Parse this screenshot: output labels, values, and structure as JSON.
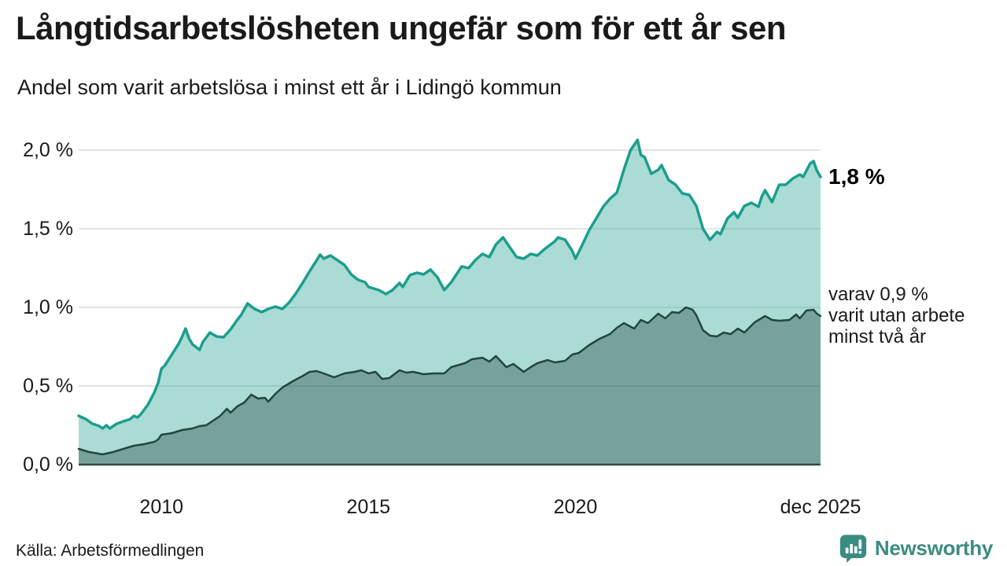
{
  "header": {
    "title": "Långtidsarbetslösheten ungefär som för ett år sen",
    "subtitle": "Andel som varit arbetslösa i minst ett år i Lidingö kommun"
  },
  "annotations": {
    "latest_label": "1,8 %",
    "varav_lines": [
      "varav 0,9 %",
      "varit utan arbete",
      "minst två år"
    ]
  },
  "footer": {
    "source": "Källa: Arbetsförmedlingen",
    "brand": "Newsworthy"
  },
  "colors": {
    "line_1yr": "#1b9e8e",
    "fill_1yr": "rgba(27,158,142,0.37)",
    "line_2yr": "#234540",
    "fill_2yr": "rgba(35,69,64,0.38)",
    "gridline": "#dcdcdc",
    "axis": "#2e4a45",
    "brand_teal": "#3a8c82"
  },
  "chart_data": {
    "type": "area",
    "title": "Långtidsarbetslösheten ungefär som för ett år sen",
    "subtitle": "Andel som varit arbetslösa i minst ett år i Lidingö kommun",
    "source": "Källa: Arbetsförmedlingen",
    "xlabel": "",
    "ylabel": "",
    "unit": "%",
    "grid": true,
    "legend_position": "right-annotations",
    "x_range": [
      2008.0,
      2025.92
    ],
    "y_range": [
      0,
      2.0
    ],
    "x_axis": {
      "ticks": [
        {
          "value": 2010,
          "label": "2010"
        },
        {
          "value": 2015,
          "label": "2015"
        },
        {
          "value": 2020,
          "label": "2020"
        },
        {
          "value": 2025.92,
          "label": "dec 2025"
        }
      ]
    },
    "y_axis": {
      "ticks": [
        {
          "value": 0.0,
          "label": "0,0 %"
        },
        {
          "value": 0.5,
          "label": "0,5 %"
        },
        {
          "value": 1.0,
          "label": "1,0 %"
        },
        {
          "value": 1.5,
          "label": "1,5 %"
        },
        {
          "value": 2.0,
          "label": "2,0 %"
        }
      ]
    },
    "series": [
      {
        "name": "Andel som varit arbetslösa i minst ett år",
        "end_label": "1,8 %",
        "end_value": 1.8,
        "color": "#1b9e8e",
        "fill": "rgba(27,158,142,0.37)",
        "points": [
          [
            2008.0,
            0.31
          ],
          [
            2008.17,
            0.29
          ],
          [
            2008.33,
            0.26
          ],
          [
            2008.5,
            0.245
          ],
          [
            2008.58,
            0.23
          ],
          [
            2008.67,
            0.25
          ],
          [
            2008.75,
            0.23
          ],
          [
            2008.92,
            0.26
          ],
          [
            2009.08,
            0.275
          ],
          [
            2009.25,
            0.29
          ],
          [
            2009.33,
            0.31
          ],
          [
            2009.42,
            0.3
          ],
          [
            2009.5,
            0.32
          ],
          [
            2009.67,
            0.38
          ],
          [
            2009.83,
            0.46
          ],
          [
            2009.92,
            0.52
          ],
          [
            2010.0,
            0.61
          ],
          [
            2010.08,
            0.63
          ],
          [
            2010.25,
            0.7
          ],
          [
            2010.42,
            0.77
          ],
          [
            2010.5,
            0.815
          ],
          [
            2010.58,
            0.865
          ],
          [
            2010.67,
            0.8
          ],
          [
            2010.75,
            0.765
          ],
          [
            2010.92,
            0.73
          ],
          [
            2011.0,
            0.78
          ],
          [
            2011.17,
            0.84
          ],
          [
            2011.33,
            0.815
          ],
          [
            2011.5,
            0.81
          ],
          [
            2011.67,
            0.86
          ],
          [
            2011.83,
            0.92
          ],
          [
            2011.92,
            0.95
          ],
          [
            2012.08,
            1.025
          ],
          [
            2012.25,
            0.99
          ],
          [
            2012.42,
            0.97
          ],
          [
            2012.58,
            0.99
          ],
          [
            2012.75,
            1.005
          ],
          [
            2012.92,
            0.99
          ],
          [
            2013.08,
            1.03
          ],
          [
            2013.25,
            1.09
          ],
          [
            2013.42,
            1.16
          ],
          [
            2013.58,
            1.23
          ],
          [
            2013.75,
            1.3
          ],
          [
            2013.83,
            1.335
          ],
          [
            2013.92,
            1.31
          ],
          [
            2014.08,
            1.33
          ],
          [
            2014.25,
            1.3
          ],
          [
            2014.42,
            1.27
          ],
          [
            2014.58,
            1.21
          ],
          [
            2014.75,
            1.175
          ],
          [
            2014.92,
            1.16
          ],
          [
            2015.0,
            1.13
          ],
          [
            2015.25,
            1.11
          ],
          [
            2015.42,
            1.085
          ],
          [
            2015.58,
            1.11
          ],
          [
            2015.75,
            1.155
          ],
          [
            2015.83,
            1.13
          ],
          [
            2016.0,
            1.205
          ],
          [
            2016.17,
            1.22
          ],
          [
            2016.33,
            1.21
          ],
          [
            2016.5,
            1.24
          ],
          [
            2016.67,
            1.19
          ],
          [
            2016.83,
            1.11
          ],
          [
            2017.0,
            1.16
          ],
          [
            2017.25,
            1.26
          ],
          [
            2017.42,
            1.25
          ],
          [
            2017.58,
            1.3
          ],
          [
            2017.75,
            1.34
          ],
          [
            2017.92,
            1.32
          ],
          [
            2018.08,
            1.4
          ],
          [
            2018.25,
            1.445
          ],
          [
            2018.42,
            1.38
          ],
          [
            2018.58,
            1.32
          ],
          [
            2018.75,
            1.31
          ],
          [
            2018.92,
            1.34
          ],
          [
            2019.08,
            1.33
          ],
          [
            2019.25,
            1.37
          ],
          [
            2019.5,
            1.42
          ],
          [
            2019.58,
            1.445
          ],
          [
            2019.75,
            1.43
          ],
          [
            2019.92,
            1.36
          ],
          [
            2020.0,
            1.31
          ],
          [
            2020.17,
            1.4
          ],
          [
            2020.33,
            1.49
          ],
          [
            2020.5,
            1.565
          ],
          [
            2020.67,
            1.64
          ],
          [
            2020.83,
            1.69
          ],
          [
            2021.0,
            1.73
          ],
          [
            2021.17,
            1.875
          ],
          [
            2021.33,
            2.0
          ],
          [
            2021.5,
            2.065
          ],
          [
            2021.58,
            1.97
          ],
          [
            2021.67,
            1.955
          ],
          [
            2021.83,
            1.85
          ],
          [
            2022.0,
            1.875
          ],
          [
            2022.08,
            1.905
          ],
          [
            2022.25,
            1.81
          ],
          [
            2022.42,
            1.78
          ],
          [
            2022.58,
            1.725
          ],
          [
            2022.75,
            1.715
          ],
          [
            2022.92,
            1.645
          ],
          [
            2023.08,
            1.5
          ],
          [
            2023.25,
            1.43
          ],
          [
            2023.42,
            1.48
          ],
          [
            2023.5,
            1.465
          ],
          [
            2023.67,
            1.565
          ],
          [
            2023.83,
            1.605
          ],
          [
            2023.92,
            1.57
          ],
          [
            2024.08,
            1.645
          ],
          [
            2024.25,
            1.665
          ],
          [
            2024.42,
            1.64
          ],
          [
            2024.5,
            1.705
          ],
          [
            2024.58,
            1.745
          ],
          [
            2024.75,
            1.67
          ],
          [
            2024.92,
            1.78
          ],
          [
            2025.08,
            1.78
          ],
          [
            2025.25,
            1.82
          ],
          [
            2025.42,
            1.845
          ],
          [
            2025.5,
            1.83
          ],
          [
            2025.67,
            1.915
          ],
          [
            2025.75,
            1.93
          ],
          [
            2025.83,
            1.87
          ],
          [
            2025.92,
            1.83
          ]
        ]
      },
      {
        "name": "varav utan arbete minst två år",
        "end_label": "varav 0,9 % varit utan arbete minst två år",
        "end_value": 0.9,
        "color": "#234540",
        "fill": "rgba(35,69,64,0.38)",
        "points": [
          [
            2008.0,
            0.1
          ],
          [
            2008.25,
            0.08
          ],
          [
            2008.58,
            0.065
          ],
          [
            2008.83,
            0.08
          ],
          [
            2009.08,
            0.1
          ],
          [
            2009.33,
            0.12
          ],
          [
            2009.58,
            0.13
          ],
          [
            2009.83,
            0.145
          ],
          [
            2009.92,
            0.16
          ],
          [
            2010.0,
            0.19
          ],
          [
            2010.25,
            0.2
          ],
          [
            2010.5,
            0.22
          ],
          [
            2010.75,
            0.23
          ],
          [
            2010.92,
            0.245
          ],
          [
            2011.08,
            0.25
          ],
          [
            2011.25,
            0.28
          ],
          [
            2011.42,
            0.31
          ],
          [
            2011.58,
            0.355
          ],
          [
            2011.67,
            0.33
          ],
          [
            2011.83,
            0.37
          ],
          [
            2012.0,
            0.395
          ],
          [
            2012.17,
            0.445
          ],
          [
            2012.33,
            0.42
          ],
          [
            2012.5,
            0.425
          ],
          [
            2012.58,
            0.4
          ],
          [
            2012.75,
            0.45
          ],
          [
            2012.92,
            0.49
          ],
          [
            2013.17,
            0.53
          ],
          [
            2013.42,
            0.565
          ],
          [
            2013.58,
            0.59
          ],
          [
            2013.75,
            0.595
          ],
          [
            2013.92,
            0.58
          ],
          [
            2014.17,
            0.555
          ],
          [
            2014.42,
            0.58
          ],
          [
            2014.67,
            0.59
          ],
          [
            2014.83,
            0.6
          ],
          [
            2015.0,
            0.58
          ],
          [
            2015.17,
            0.59
          ],
          [
            2015.33,
            0.545
          ],
          [
            2015.5,
            0.55
          ],
          [
            2015.75,
            0.6
          ],
          [
            2015.92,
            0.585
          ],
          [
            2016.08,
            0.59
          ],
          [
            2016.33,
            0.575
          ],
          [
            2016.58,
            0.58
          ],
          [
            2016.83,
            0.58
          ],
          [
            2017.0,
            0.62
          ],
          [
            2017.33,
            0.645
          ],
          [
            2017.5,
            0.67
          ],
          [
            2017.75,
            0.68
          ],
          [
            2017.92,
            0.655
          ],
          [
            2018.08,
            0.69
          ],
          [
            2018.33,
            0.62
          ],
          [
            2018.5,
            0.64
          ],
          [
            2018.75,
            0.59
          ],
          [
            2018.92,
            0.62
          ],
          [
            2019.08,
            0.645
          ],
          [
            2019.33,
            0.665
          ],
          [
            2019.5,
            0.65
          ],
          [
            2019.75,
            0.66
          ],
          [
            2019.92,
            0.7
          ],
          [
            2020.08,
            0.71
          ],
          [
            2020.33,
            0.76
          ],
          [
            2020.58,
            0.8
          ],
          [
            2020.83,
            0.83
          ],
          [
            2021.0,
            0.87
          ],
          [
            2021.17,
            0.9
          ],
          [
            2021.42,
            0.865
          ],
          [
            2021.58,
            0.92
          ],
          [
            2021.75,
            0.9
          ],
          [
            2022.0,
            0.96
          ],
          [
            2022.17,
            0.93
          ],
          [
            2022.33,
            0.97
          ],
          [
            2022.5,
            0.965
          ],
          [
            2022.67,
            1.0
          ],
          [
            2022.83,
            0.985
          ],
          [
            2022.92,
            0.95
          ],
          [
            2023.08,
            0.855
          ],
          [
            2023.25,
            0.82
          ],
          [
            2023.42,
            0.815
          ],
          [
            2023.58,
            0.84
          ],
          [
            2023.75,
            0.83
          ],
          [
            2023.92,
            0.865
          ],
          [
            2024.08,
            0.84
          ],
          [
            2024.33,
            0.905
          ],
          [
            2024.58,
            0.945
          ],
          [
            2024.75,
            0.92
          ],
          [
            2024.92,
            0.915
          ],
          [
            2025.17,
            0.92
          ],
          [
            2025.33,
            0.955
          ],
          [
            2025.42,
            0.93
          ],
          [
            2025.58,
            0.98
          ],
          [
            2025.75,
            0.985
          ],
          [
            2025.83,
            0.96
          ],
          [
            2025.92,
            0.945
          ]
        ]
      }
    ]
  }
}
